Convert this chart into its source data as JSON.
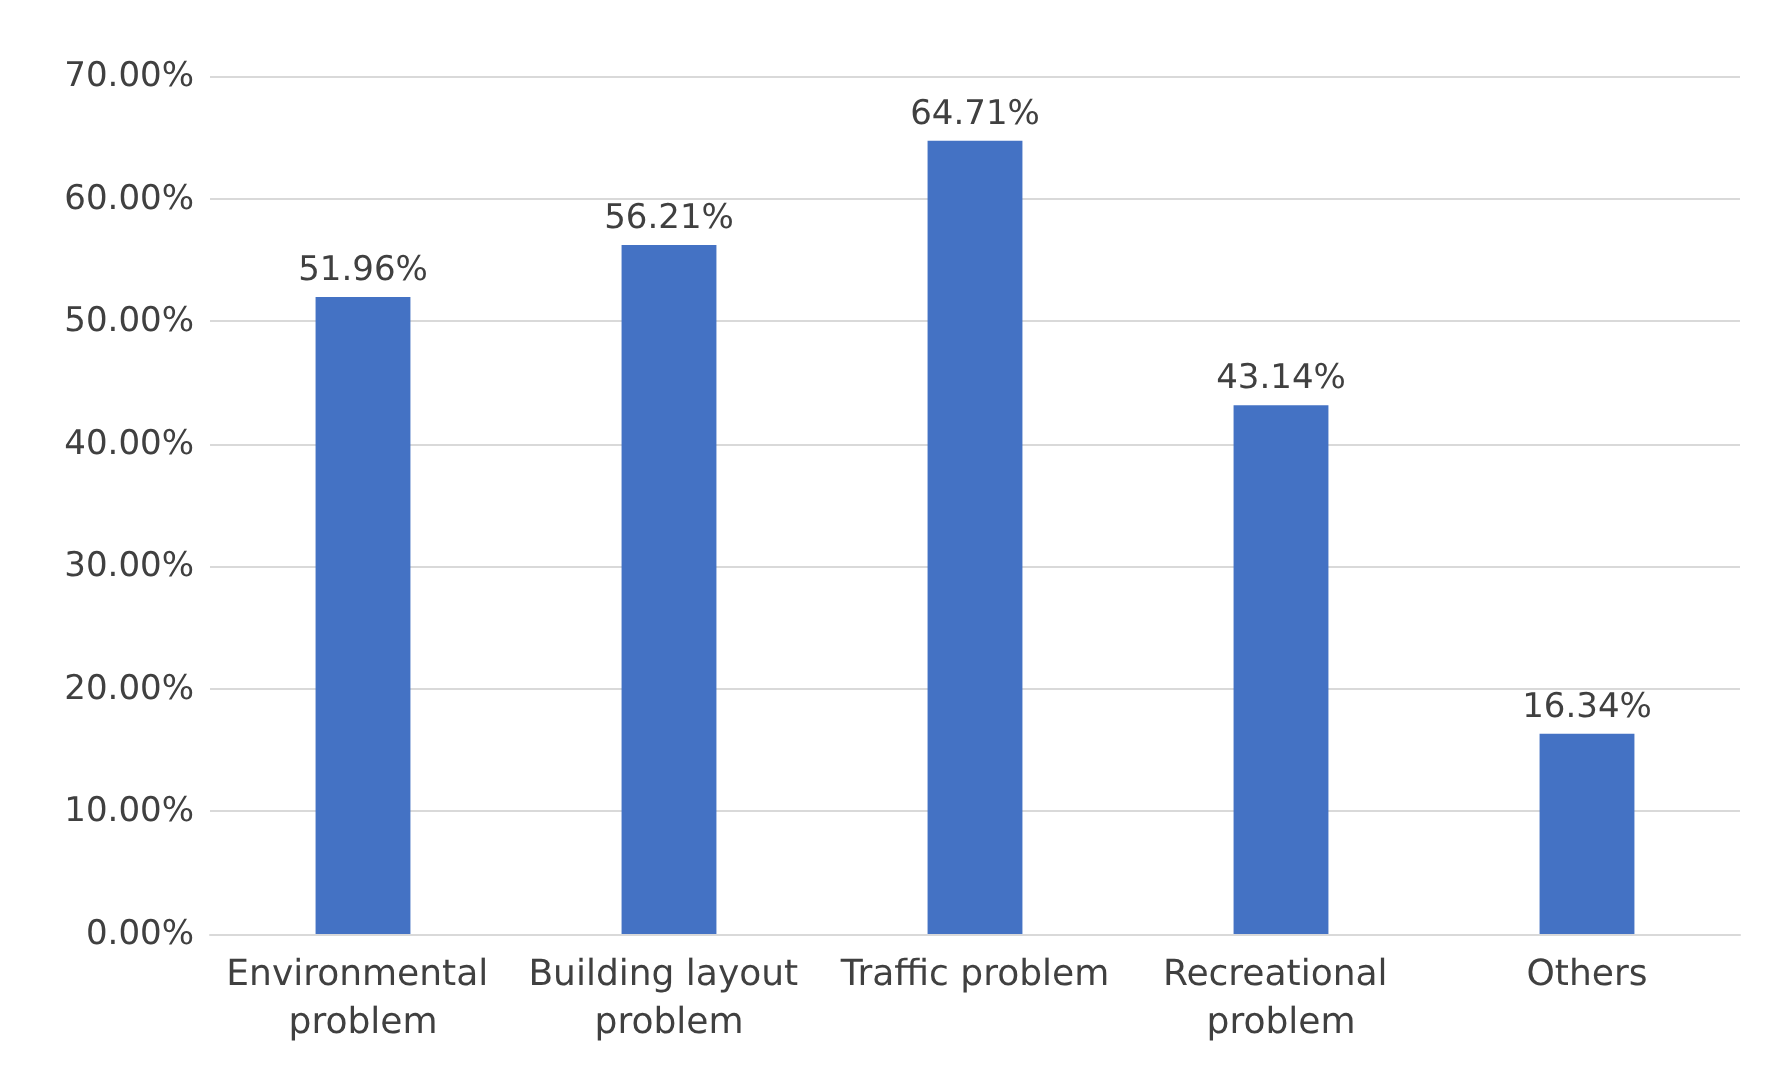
{
  "chart_data": {
    "type": "bar",
    "categories": [
      "Environmental problem",
      "Building layout problem",
      "Traffic problem",
      "Recreational problem",
      "Others"
    ],
    "values": [
      51.96,
      56.21,
      64.71,
      43.14,
      16.34
    ],
    "value_labels": [
      "51.96%",
      "56.21%",
      "64.71%",
      "43.14%",
      "16.34%"
    ],
    "color": "#4472c4",
    "ylim": [
      0,
      70
    ],
    "yticks": [
      {
        "value": 0,
        "label": "0.00%"
      },
      {
        "value": 10,
        "label": "10.00%"
      },
      {
        "value": 20,
        "label": "20.00%"
      },
      {
        "value": 30,
        "label": "30.00%"
      },
      {
        "value": 40,
        "label": "40.00%"
      },
      {
        "value": 50,
        "label": "50.00%"
      },
      {
        "value": 60,
        "label": "60.00%"
      },
      {
        "value": 70,
        "label": "70.00%"
      }
    ],
    "grid": true
  }
}
